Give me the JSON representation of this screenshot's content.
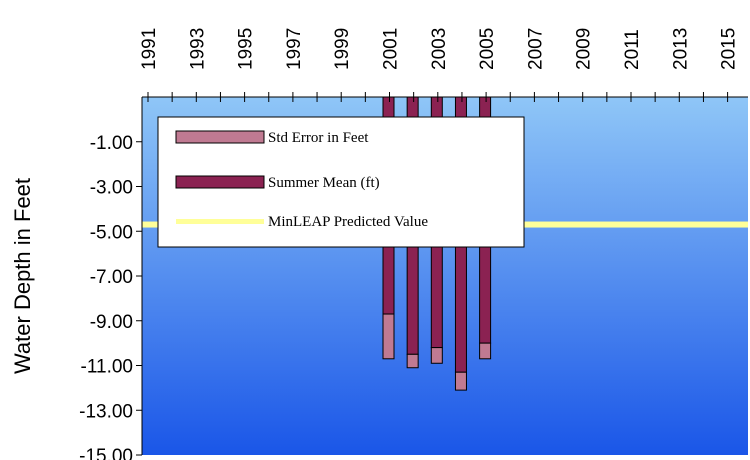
{
  "chart_data": {
    "type": "bar",
    "title": "",
    "xlabel": "",
    "ylabel": "Water Depth in Feet",
    "x_ticks": [
      "1991",
      "1993",
      "1995",
      "1997",
      "1999",
      "2001",
      "2003",
      "2005",
      "2007",
      "2009",
      "2011",
      "2013",
      "2015"
    ],
    "x_range": [
      1991,
      2015
    ],
    "y_ticks": [
      "-1.00",
      "-3.00",
      "-5.00",
      "-7.00",
      "-9.00",
      "-11.00",
      "-13.00",
      "-15.00"
    ],
    "ylim": [
      -15,
      1
    ],
    "years": [
      2001,
      2002,
      2003,
      2004,
      2005
    ],
    "series": [
      {
        "name": "Summer Mean (ft)",
        "values": [
          -8.7,
          -10.5,
          -10.2,
          -11.3,
          -10.0
        ],
        "color": "#8b2252"
      },
      {
        "name": "Std Error in Feet",
        "values": [
          2.0,
          0.6,
          0.7,
          0.8,
          0.7
        ],
        "color": "#c07a92"
      },
      {
        "name": "MinLEAP Predicted Value",
        "value": -4.7,
        "color": "#ffff99"
      }
    ],
    "legend_position": "top-left",
    "background_gradient": [
      "#8fc6f7",
      "#1a56e8"
    ]
  }
}
